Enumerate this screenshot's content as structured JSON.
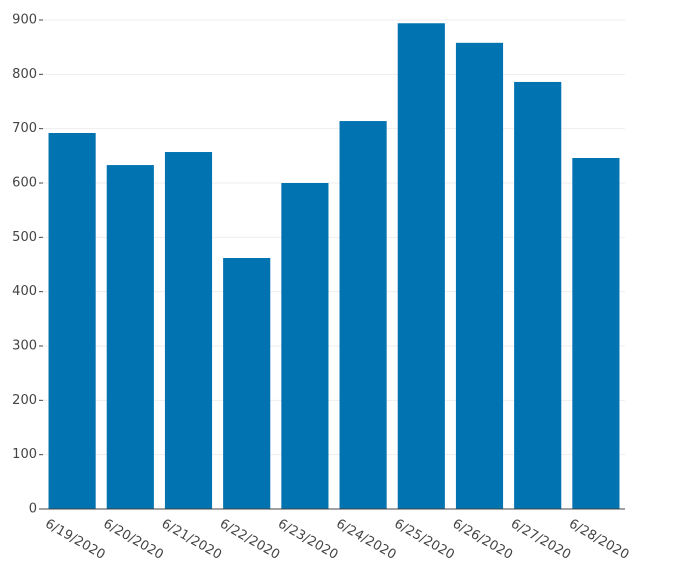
{
  "chart_data": {
    "type": "bar",
    "categories": [
      "6/19/2020",
      "6/20/2020",
      "6/21/2020",
      "6/22/2020",
      "6/23/2020",
      "6/24/2020",
      "6/25/2020",
      "6/26/2020",
      "6/27/2020",
      "6/28/2020"
    ],
    "values": [
      692,
      633,
      657,
      462,
      600,
      714,
      894,
      858,
      786,
      646
    ],
    "color": "#0073b0",
    "ylim": [
      0,
      900
    ],
    "yticks": [
      0,
      100,
      200,
      300,
      400,
      500,
      600,
      700,
      800,
      900
    ],
    "grid": true
  }
}
